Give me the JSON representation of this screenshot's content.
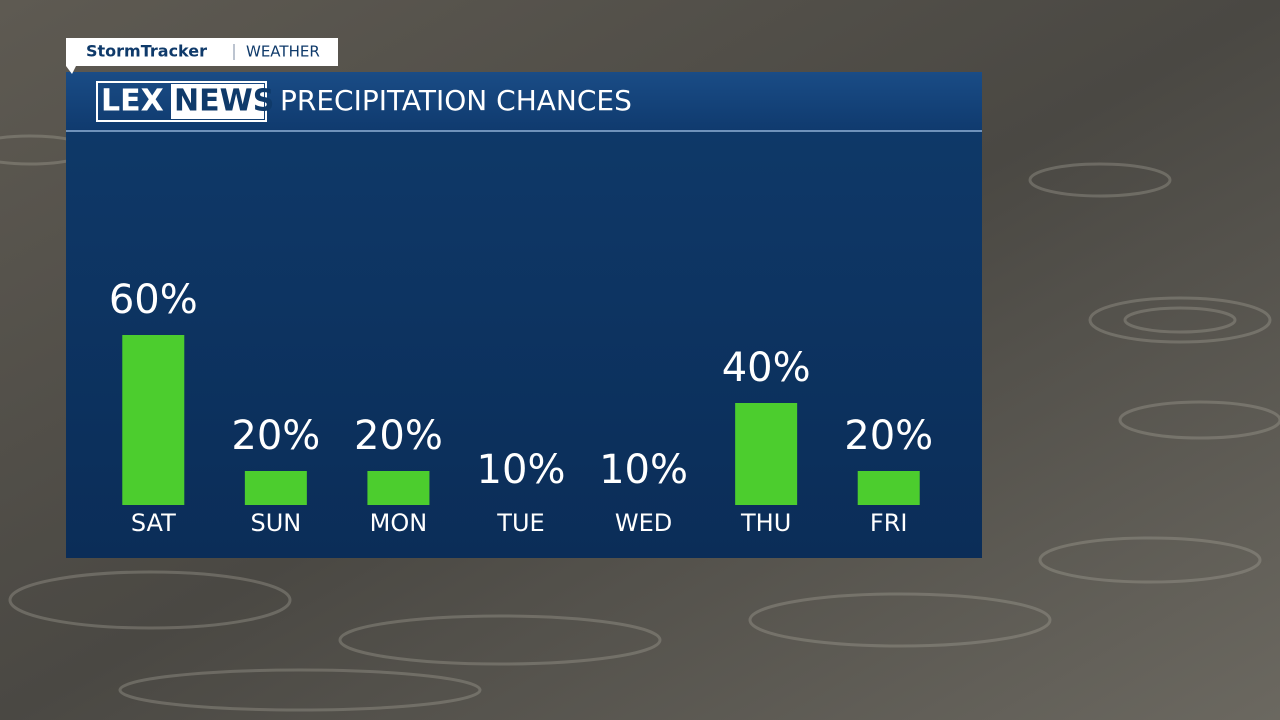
{
  "header": {
    "brand": "StormTracker",
    "section": "WEATHER",
    "logo_left": "LEX",
    "logo_right": "NEWS"
  },
  "chart_data": {
    "type": "bar",
    "title": "PRECIPITATION CHANCES",
    "categories": [
      "SAT",
      "SUN",
      "MON",
      "TUE",
      "WED",
      "THU",
      "FRI"
    ],
    "values": [
      60,
      20,
      20,
      10,
      10,
      40,
      20
    ],
    "value_labels": [
      "60%",
      "20%",
      "20%",
      "10%",
      "10%",
      "40%",
      "20%"
    ],
    "color": "#4ccd2e",
    "ylim": [
      10,
      60
    ]
  }
}
